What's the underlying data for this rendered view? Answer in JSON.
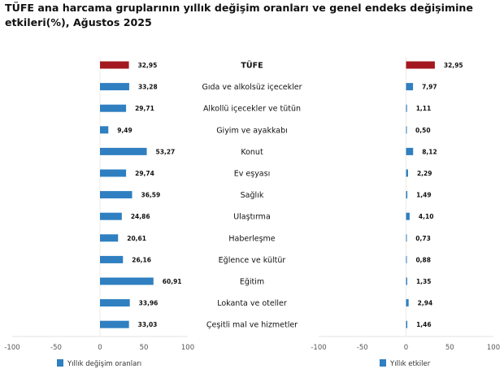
{
  "title": "TÜFE ana harcama gruplarının yıllık değişim oranları ve genel endeks değişimine etkileri(%), Ağustos 2025",
  "colors": {
    "highlight": "#a3191f",
    "bar": "#2f7fc1",
    "grid": "#e3e3e3"
  },
  "chart_data": [
    {
      "type": "bar",
      "orientation": "horizontal",
      "categories": [
        "TÜFE",
        "Gıda ve alkolsüz içecekler",
        "Alkollü içecekler ve tütün",
        "Giyim ve ayakkabı",
        "Konut",
        "Ev eşyası",
        "Sağlık",
        "Ulaştırma",
        "Haberleşme",
        "Eğlence ve kültür",
        "Eğitim",
        "Lokanta ve oteller",
        "Çeşitli mal ve hizmetler"
      ],
      "series": [
        {
          "name": "Yıllık değişim oranları",
          "values": [
            32.95,
            33.28,
            29.71,
            9.49,
            53.27,
            29.74,
            36.59,
            24.86,
            20.61,
            26.16,
            60.91,
            33.96,
            33.03
          ]
        }
      ],
      "data_labels": [
        "32,95",
        "33,28",
        "29,71",
        "9,49",
        "53,27",
        "29,74",
        "36,59",
        "24,86",
        "20,61",
        "26,16",
        "60,91",
        "33,96",
        "33,03"
      ],
      "xlim": [
        -100,
        100
      ],
      "xticks": [
        "-100",
        "-50",
        "0",
        "50",
        "100"
      ],
      "legend": "bottom"
    },
    {
      "type": "bar",
      "orientation": "horizontal",
      "categories": [
        "TÜFE",
        "Gıda ve alkolsüz içecekler",
        "Alkollü içecekler ve tütün",
        "Giyim ve ayakkabı",
        "Konut",
        "Ev eşyası",
        "Sağlık",
        "Ulaştırma",
        "Haberleşme",
        "Eğlence ve kültür",
        "Eğitim",
        "Lokanta ve oteller",
        "Çeşitli mal ve hizmetler"
      ],
      "series": [
        {
          "name": "Yıllık etkiler",
          "values": [
            32.95,
            7.97,
            1.11,
            0.5,
            8.12,
            2.29,
            1.49,
            4.1,
            0.73,
            0.88,
            1.35,
            2.94,
            1.46
          ]
        }
      ],
      "data_labels": [
        "32,95",
        "7,97",
        "1,11",
        "0,50",
        "8,12",
        "2,29",
        "1,49",
        "4,10",
        "0,73",
        "0,88",
        "1,35",
        "2,94",
        "1,46"
      ],
      "xlim": [
        -100,
        100
      ],
      "xticks": [
        "-100",
        "-50",
        "0",
        "50",
        "100"
      ],
      "legend": "bottom"
    }
  ]
}
